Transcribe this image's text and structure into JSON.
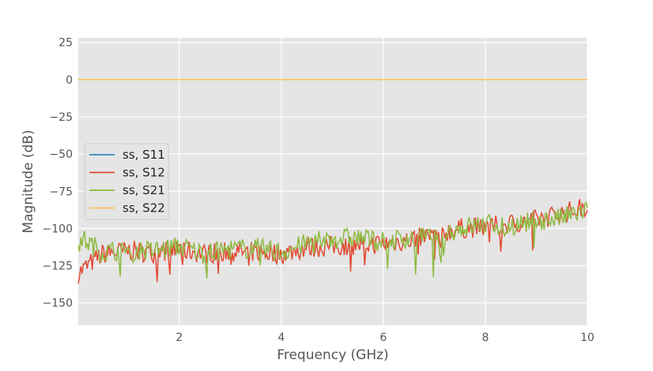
{
  "chart_data": {
    "type": "line",
    "title": "",
    "xlabel": "Frequency (GHz)",
    "ylabel": "Magnitude (dB)",
    "xlim": [
      0.02,
      10
    ],
    "ylim": [
      -165,
      28
    ],
    "xticks": [
      2,
      4,
      6,
      8,
      10
    ],
    "yticks": [
      25,
      0,
      -25,
      -50,
      -75,
      -100,
      -125,
      -150
    ],
    "xtick_labels": [
      "2",
      "4",
      "6",
      "8",
      "10"
    ],
    "ytick_labels": [
      "25",
      "0",
      "−25",
      "−50",
      "−75",
      "−100",
      "−125",
      "−150"
    ],
    "grid": true,
    "legend_position": "center-left",
    "series": [
      {
        "name": "ss, S11",
        "color": "#348abd",
        "x": [
          0.02,
          10
        ],
        "y": [
          0,
          0
        ]
      },
      {
        "name": "ss, S12",
        "color": "#e24a33",
        "x": [
          0.02,
          0.5,
          1.0,
          1.5,
          2.0,
          2.5,
          3.0,
          3.5,
          4.0,
          4.5,
          5.0,
          5.5,
          6.0,
          6.5,
          7.0,
          7.5,
          8.0,
          8.5,
          9.0,
          9.5,
          10.0
        ],
        "y": [
          -130,
          -117,
          -115,
          -116,
          -114,
          -117,
          -115,
          -116,
          -117,
          -113,
          -112,
          -111,
          -110,
          -108,
          -104,
          -100,
          -99,
          -97,
          -94,
          -90,
          -85
        ]
      },
      {
        "name": "ss, S21",
        "color": "#8eba42",
        "x": [
          0.02,
          0.5,
          1.0,
          1.5,
          2.0,
          2.5,
          3.0,
          3.5,
          4.0,
          4.5,
          5.0,
          5.5,
          6.0,
          6.5,
          7.0,
          7.5,
          8.0,
          8.5,
          9.0,
          9.5,
          10.0
        ],
        "y": [
          -105,
          -116,
          -114,
          -115,
          -112,
          -117,
          -114,
          -113,
          -116,
          -110,
          -107,
          -106,
          -109,
          -106,
          -106,
          -100,
          -97,
          -98,
          -95,
          -93,
          -88
        ]
      },
      {
        "name": "ss, S22",
        "color": "#fbc15e",
        "x": [
          0.02,
          10
        ],
        "y": [
          0,
          0
        ]
      }
    ]
  }
}
